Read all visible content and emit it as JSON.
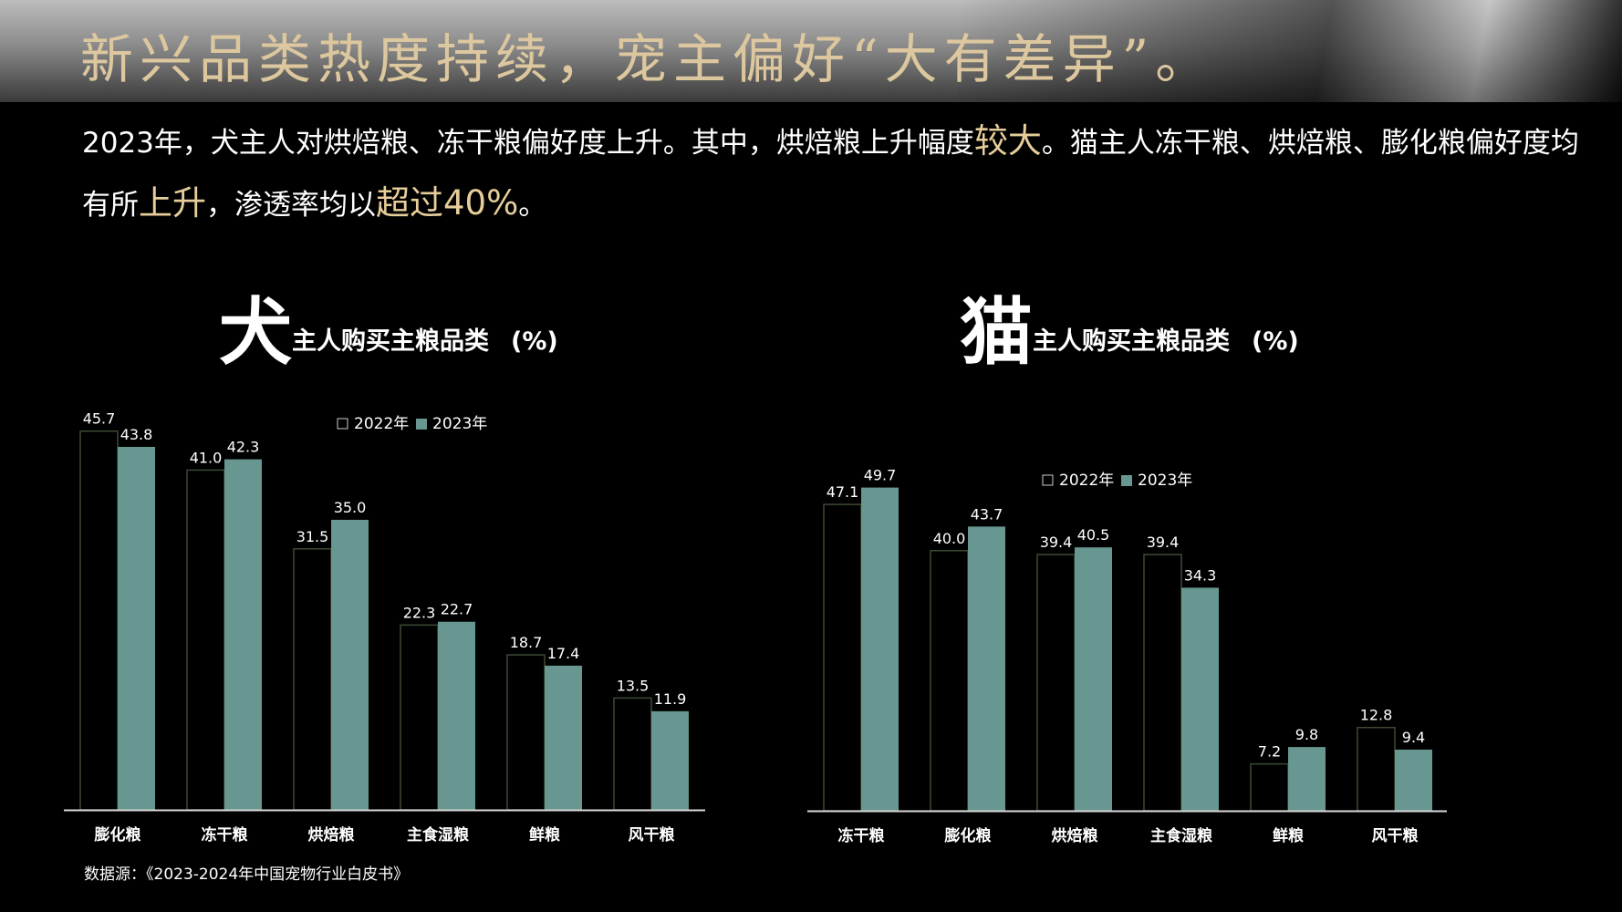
{
  "title": "新兴品类热度持续，宠主偏好“大有差异”。",
  "intro": {
    "p1": "2023年，犬主人对烘焙粮、冻干粮偏好度上升。其中，烘焙粮上升幅度",
    "h1": "较大",
    "p2": "。猫主人冻干粮、烘焙粮、膨化粮偏好度均有所",
    "h2": "上升",
    "p3": "，渗透率均以",
    "h3": "超过40%",
    "p4": "。"
  },
  "dog_title": {
    "big": "犬",
    "rest": "主人购买主粮品类",
    "unit": "(%)"
  },
  "cat_title": {
    "big": "猫",
    "rest": "主人购买主粮品类",
    "unit": "(%)"
  },
  "source": "数据源：《2023-2024年中国宠物行业白皮书》",
  "colors": {
    "series_2023": "#679790",
    "outline_2022": "#3c4a34",
    "axis": "#d9d9d9",
    "highlight": "#e6cd9a",
    "title_gold": "#ddc79e"
  },
  "chart_data": [
    {
      "type": "bar",
      "id": "dog",
      "categories": [
        "膨化粮",
        "冻干粮",
        "烘焙粮",
        "主食湿粮",
        "鲜粮",
        "风干粮"
      ],
      "series": [
        {
          "name": "2022年",
          "values": [
            45.7,
            41.0,
            31.5,
            22.3,
            18.7,
            13.5
          ]
        },
        {
          "name": "2023年",
          "values": [
            43.8,
            42.3,
            35.0,
            22.7,
            17.4,
            11.9
          ]
        }
      ],
      "ylim": [
        0,
        46
      ],
      "legend": "top-center",
      "grid": false
    },
    {
      "type": "bar",
      "id": "cat",
      "categories": [
        "冻干粮",
        "膨化粮",
        "烘焙粮",
        "主食湿粮",
        "鲜粮",
        "风干粮"
      ],
      "series": [
        {
          "name": "2022年",
          "values": [
            47.1,
            40.0,
            39.4,
            39.4,
            7.2,
            12.8
          ]
        },
        {
          "name": "2023年",
          "values": [
            49.7,
            43.7,
            40.5,
            34.3,
            9.8,
            9.4
          ]
        }
      ],
      "ylim": [
        0,
        61
      ],
      "legend": "top-center",
      "grid": false
    }
  ]
}
